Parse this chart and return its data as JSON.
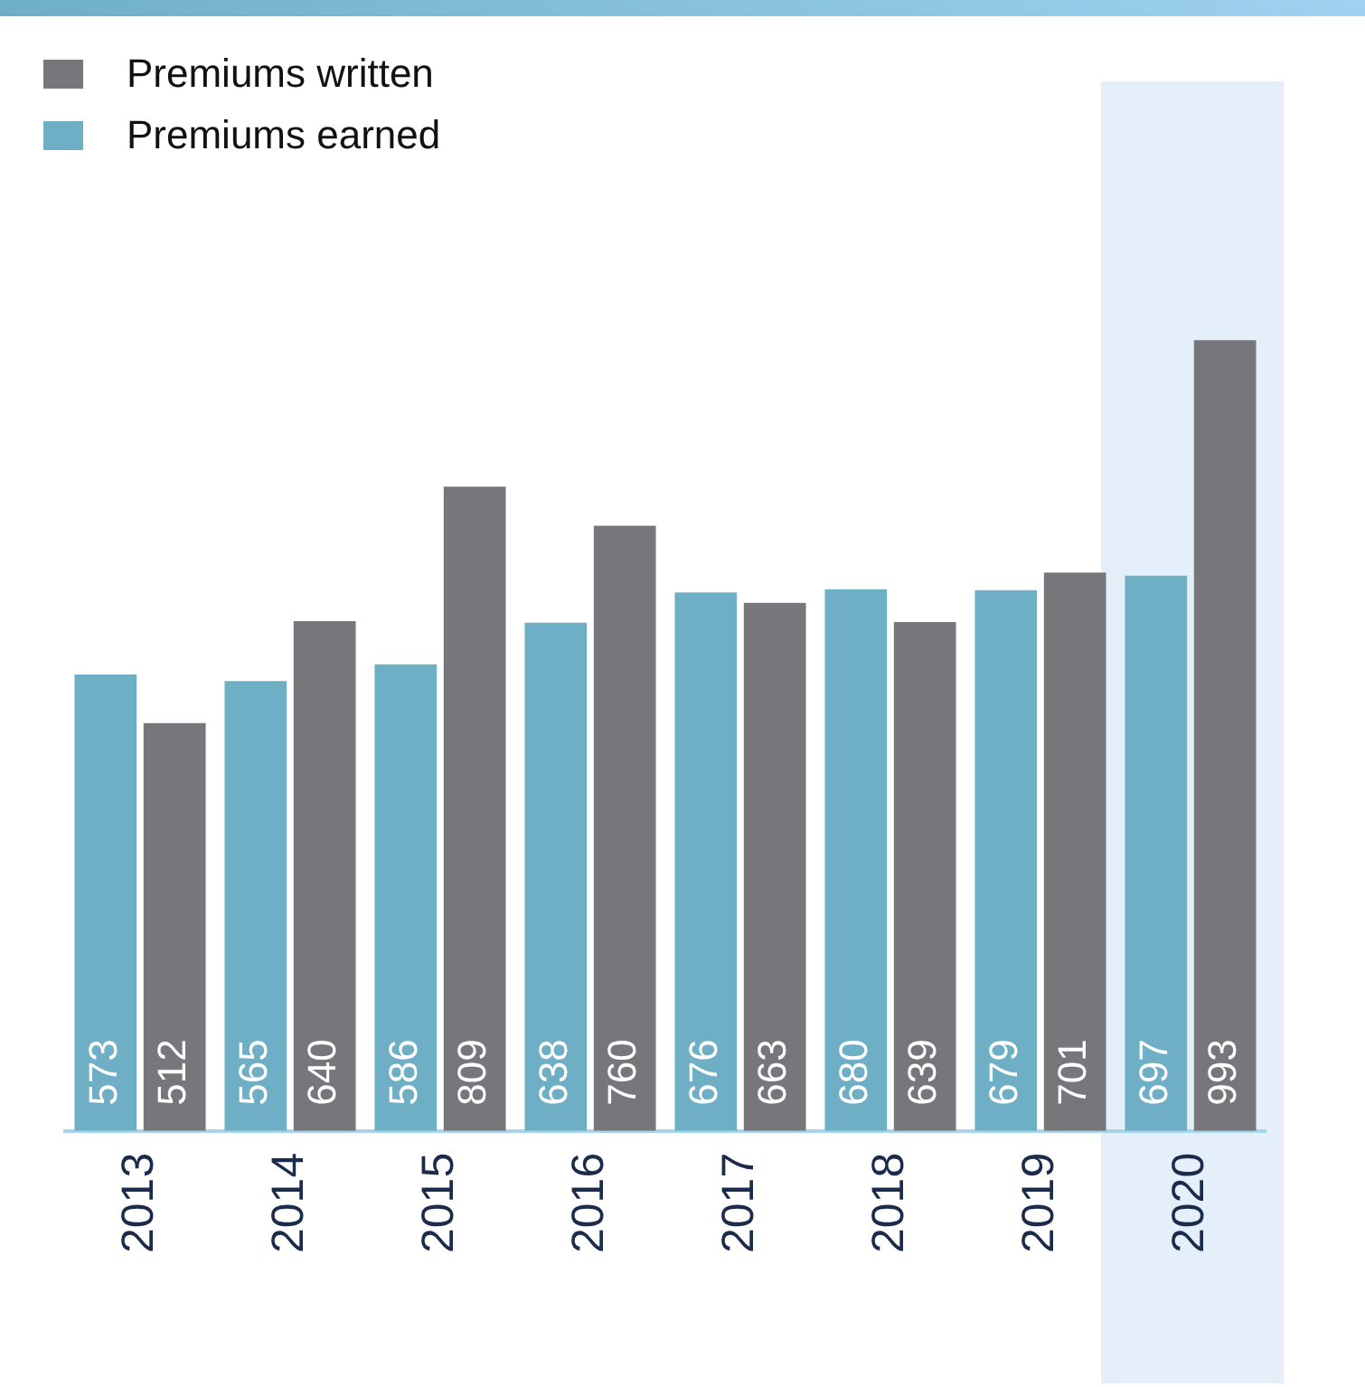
{
  "chart_data": {
    "type": "bar",
    "categories": [
      "2013",
      "2014",
      "2015",
      "2016",
      "2017",
      "2018",
      "2019",
      "2020"
    ],
    "series": [
      {
        "name": "Premiums earned",
        "color": "#6eafc6",
        "values": [
          573,
          565,
          586,
          638,
          676,
          680,
          679,
          697
        ]
      },
      {
        "name": "Premiums written",
        "color": "#77777b",
        "values": [
          512,
          640,
          809,
          760,
          663,
          639,
          701,
          993
        ]
      }
    ],
    "data_labels": true,
    "legend": "top left",
    "grid": false,
    "bands": [
      {
        "axis": "x",
        "from": "2020",
        "to": "2020",
        "color": "#e4effa"
      }
    ]
  }
}
